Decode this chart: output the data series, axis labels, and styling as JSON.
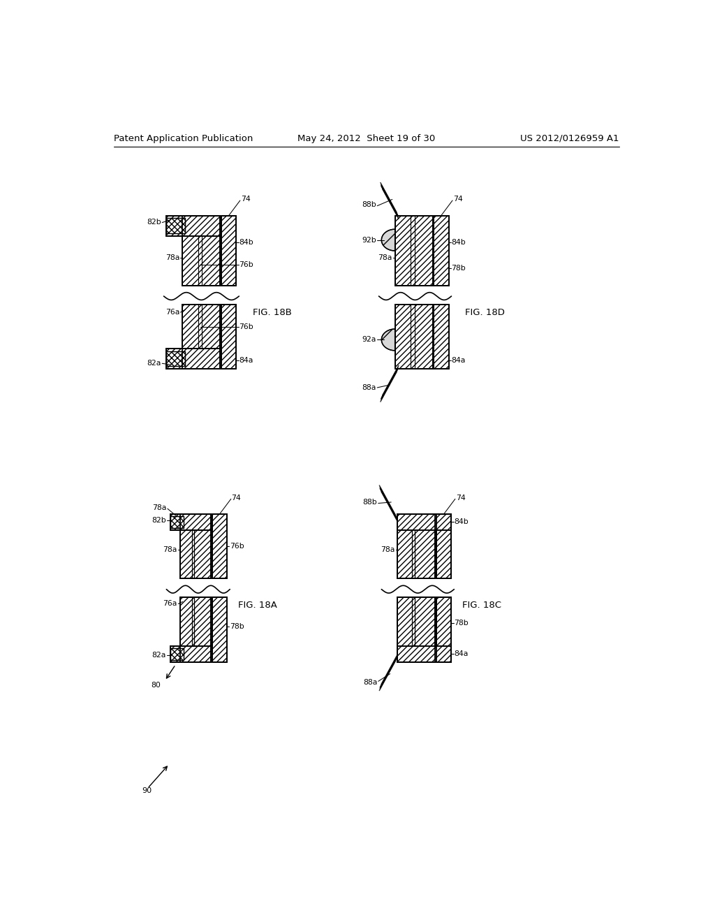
{
  "header_left": "Patent Application Publication",
  "header_mid": "May 24, 2012  Sheet 19 of 30",
  "header_right": "US 2012/0126959 A1",
  "background": "#ffffff"
}
